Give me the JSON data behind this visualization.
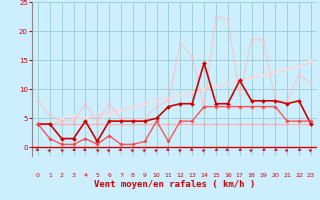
{
  "xlabel": "Vent moyen/en rafales ( km/h )",
  "bg_color": "#cceeff",
  "grid_color": "#99cccc",
  "xlim": [
    -0.5,
    23.5
  ],
  "ylim": [
    -1.5,
    25
  ],
  "yticks": [
    0,
    5,
    10,
    15,
    20,
    25
  ],
  "xticks": [
    0,
    1,
    2,
    3,
    4,
    5,
    6,
    7,
    8,
    9,
    10,
    11,
    12,
    13,
    14,
    15,
    16,
    17,
    18,
    19,
    20,
    21,
    22,
    23
  ],
  "series": [
    {
      "x": [
        0,
        1,
        2,
        3,
        4,
        5,
        6,
        7,
        8,
        9,
        10,
        11,
        12,
        13,
        14,
        15,
        16,
        17,
        18,
        19,
        20,
        21,
        22,
        23
      ],
      "y": [
        4.0,
        4.0,
        4.0,
        4.0,
        4.0,
        4.0,
        4.0,
        4.0,
        4.0,
        4.0,
        4.0,
        4.0,
        4.0,
        4.0,
        4.0,
        4.0,
        4.0,
        4.0,
        4.0,
        4.0,
        4.0,
        4.0,
        4.0,
        4.0
      ],
      "color": "#ffaaaa",
      "lw": 1.0,
      "marker": "D",
      "markersize": 1.5,
      "alpha": 0.8
    },
    {
      "x": [
        0,
        1,
        2,
        3,
        4,
        5,
        6,
        7,
        8,
        9,
        10,
        11,
        12,
        13,
        14,
        15,
        16,
        17,
        18,
        19,
        20,
        21,
        22,
        23
      ],
      "y": [
        4.0,
        4.0,
        4.5,
        5.0,
        5.0,
        5.5,
        6.0,
        6.5,
        7.0,
        7.5,
        8.0,
        8.5,
        9.0,
        9.5,
        10.0,
        10.5,
        11.0,
        11.5,
        12.0,
        12.5,
        13.0,
        13.5,
        14.0,
        14.5
      ],
      "color": "#ffcccc",
      "lw": 1.0,
      "marker": "D",
      "markersize": 1.5,
      "alpha": 0.75
    },
    {
      "x": [
        0,
        1,
        2,
        3,
        4,
        5,
        6,
        7,
        8,
        9,
        10,
        11,
        12,
        13,
        14,
        15,
        16,
        17,
        18,
        19,
        20,
        21,
        22,
        23
      ],
      "y": [
        4.0,
        4.0,
        5.0,
        5.5,
        5.0,
        4.5,
        5.5,
        6.5,
        7.0,
        7.5,
        8.0,
        8.5,
        9.0,
        9.5,
        10.0,
        10.5,
        11.0,
        11.5,
        12.0,
        12.5,
        13.0,
        13.5,
        14.0,
        15.0
      ],
      "color": "#ffdddd",
      "lw": 1.0,
      "marker": "D",
      "markersize": 1.5,
      "alpha": 0.65
    },
    {
      "x": [
        0,
        1,
        2,
        3,
        4,
        5,
        6,
        7,
        8,
        9,
        10,
        11,
        12,
        13,
        14,
        15,
        16,
        17,
        18,
        19,
        20,
        21,
        22,
        23
      ],
      "y": [
        8.0,
        5.5,
        4.5,
        4.5,
        7.5,
        4.5,
        7.5,
        5.0,
        5.0,
        5.0,
        7.0,
        8.0,
        18.0,
        15.5,
        7.0,
        22.5,
        22.0,
        9.0,
        18.5,
        18.5,
        8.0,
        8.0,
        12.5,
        11.0
      ],
      "color": "#ffbbbb",
      "lw": 0.9,
      "marker": "D",
      "markersize": 1.5,
      "alpha": 0.7
    },
    {
      "x": [
        0,
        1,
        2,
        3,
        4,
        5,
        6,
        7,
        8,
        9,
        10,
        11,
        12,
        13,
        14,
        15,
        16,
        17,
        18,
        19,
        20,
        21,
        22,
        23
      ],
      "y": [
        4.0,
        4.0,
        1.5,
        1.5,
        4.5,
        1.0,
        4.5,
        4.5,
        4.5,
        4.5,
        5.0,
        7.0,
        7.5,
        7.5,
        14.5,
        7.5,
        7.5,
        11.5,
        8.0,
        8.0,
        8.0,
        7.5,
        8.0,
        4.0
      ],
      "color": "#cc0000",
      "lw": 1.2,
      "marker": "D",
      "markersize": 2.0,
      "alpha": 1.0
    },
    {
      "x": [
        0,
        1,
        2,
        3,
        4,
        5,
        6,
        7,
        8,
        9,
        10,
        11,
        12,
        13,
        14,
        15,
        16,
        17,
        18,
        19,
        20,
        21,
        22,
        23
      ],
      "y": [
        4.0,
        1.5,
        0.5,
        0.5,
        1.5,
        0.5,
        2.0,
        0.5,
        0.5,
        1.0,
        4.5,
        1.0,
        4.5,
        4.5,
        7.0,
        7.0,
        7.0,
        7.0,
        7.0,
        7.0,
        7.0,
        4.5,
        4.5,
        4.5
      ],
      "color": "#ff4444",
      "lw": 1.0,
      "marker": "D",
      "markersize": 1.8,
      "alpha": 0.9
    }
  ],
  "arrow_color": "#cc0000",
  "xlabel_color": "#cc0000",
  "tick_color": "#cc0000",
  "spine_color": "#888888"
}
